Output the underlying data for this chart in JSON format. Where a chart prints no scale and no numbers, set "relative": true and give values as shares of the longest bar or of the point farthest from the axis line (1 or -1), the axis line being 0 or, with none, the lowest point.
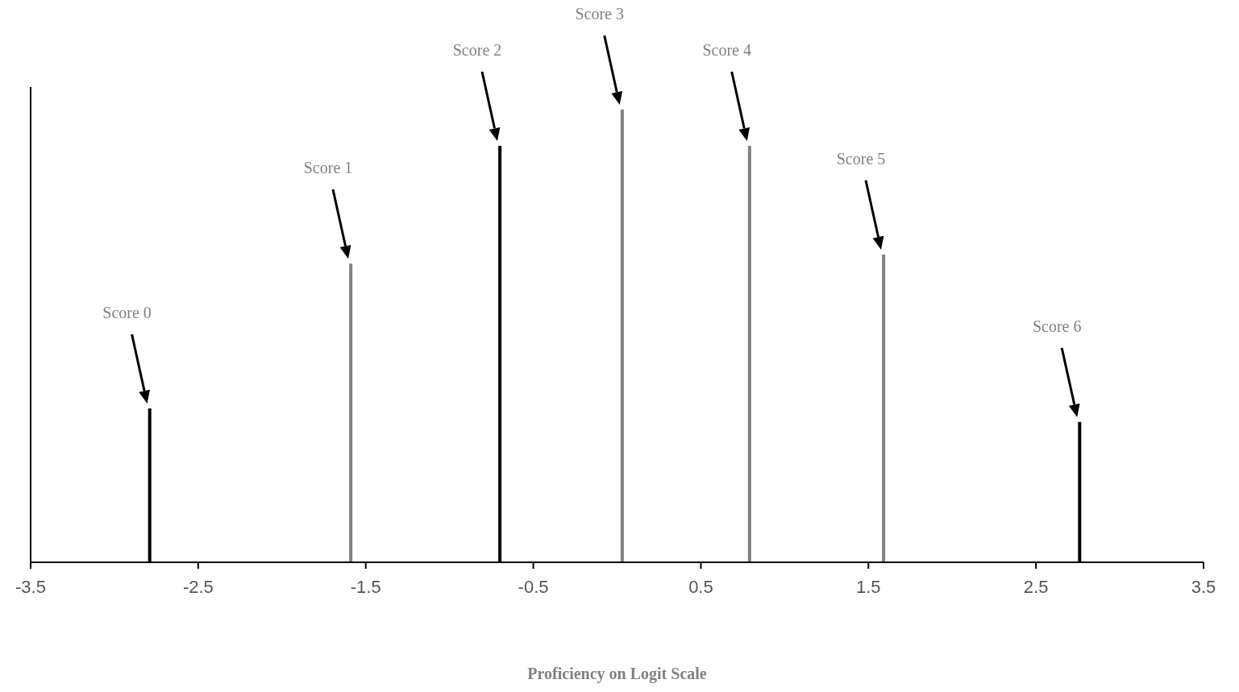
{
  "chart_data": {
    "type": "bar",
    "relative": true,
    "xlabel": "Proficiency on Logit Scale",
    "x": [
      -2.79,
      -1.59,
      -0.7,
      0.03,
      0.79,
      1.59,
      2.76
    ],
    "values": [
      0.34,
      0.66,
      0.92,
      1,
      0.92,
      0.68,
      0.31
    ],
    "colors": [
      "#000000",
      "#808080",
      "#000000",
      "#808080",
      "#808080",
      "#808080",
      "#000000"
    ],
    "xlim": [
      -3.5,
      3.5
    ],
    "xticks": [
      -3.5,
      -2.5,
      -1.5,
      -0.5,
      0.5,
      1.5,
      2.5,
      3.5
    ],
    "grid": false,
    "legend": false,
    "annotations": [
      "Score 0",
      "Score 1",
      "Score 2",
      "Score 3",
      "Score 4",
      "Score 5",
      "Score 6"
    ]
  }
}
